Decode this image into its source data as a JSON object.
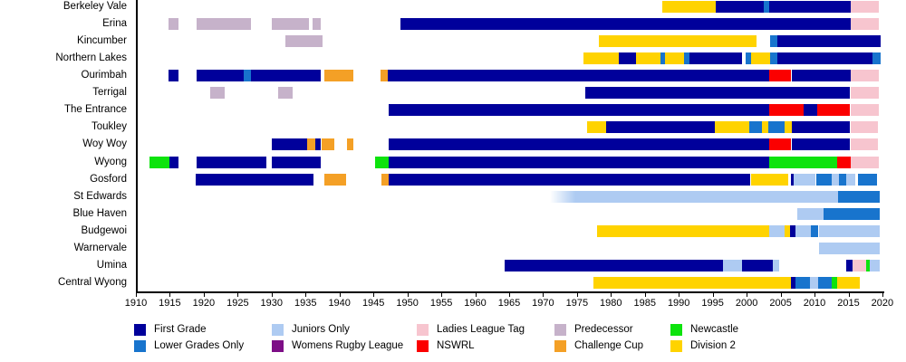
{
  "chart_data": {
    "type": "timeline-gantt",
    "description": "Timeline of Central Coast rugby league clubs and competition status by year",
    "x_axis": {
      "min": 1910,
      "max": 2020,
      "tick_step": 5,
      "ticks": [
        1910,
        1915,
        1920,
        1925,
        1930,
        1935,
        1940,
        1945,
        1950,
        1955,
        1960,
        1965,
        1970,
        1975,
        1980,
        1985,
        1990,
        1995,
        2000,
        2005,
        2010,
        2015,
        2020
      ]
    },
    "legend": [
      {
        "key": "first",
        "label": "First Grade",
        "color": "#00009B"
      },
      {
        "key": "lower",
        "label": "Lower Grades Only",
        "color": "#1874CD"
      },
      {
        "key": "juniors",
        "label": "Juniors Only",
        "color": "#AECBF2"
      },
      {
        "key": "womens",
        "label": "Womens Rugby League",
        "color": "#7D0E86"
      },
      {
        "key": "ladies",
        "label": "Ladies League Tag",
        "color": "#F7C5CF"
      },
      {
        "key": "nswrl",
        "label": "NSWRL",
        "color": "#FB0000"
      },
      {
        "key": "predecessor",
        "label": "Predecessor",
        "color": "#C6B2CA"
      },
      {
        "key": "challenge",
        "label": "Challenge Cup",
        "color": "#F4A026"
      },
      {
        "key": "newcastle",
        "label": "Newcastle",
        "color": "#0DE30D"
      },
      {
        "key": "division2",
        "label": "Division 2",
        "color": "#FFD300"
      }
    ],
    "legend_columns": [
      [
        "first",
        "lower"
      ],
      [
        "juniors",
        "womens"
      ],
      [
        "ladies",
        "nswrl"
      ],
      [
        "predecessor",
        "challenge"
      ],
      [
        "newcastle",
        "division2"
      ]
    ],
    "rows": [
      {
        "name": "Berkeley Vale",
        "segments": [
          {
            "key": "division2",
            "start": 1987.5,
            "end": 1995.5
          },
          {
            "key": "first",
            "start": 1995.5,
            "end": 2002.5
          },
          {
            "key": "lower",
            "start": 2002.5,
            "end": 2003.3
          },
          {
            "key": "first",
            "start": 2003.3,
            "end": 2015.3
          },
          {
            "key": "ladies",
            "start": 2015.3,
            "end": 2019.5
          }
        ]
      },
      {
        "name": "Erina",
        "segments": [
          {
            "key": "predecessor",
            "start": 1914.8,
            "end": 1916.2
          },
          {
            "key": "predecessor",
            "start": 1919,
            "end": 1927
          },
          {
            "key": "predecessor",
            "start": 1930,
            "end": 1935.5
          },
          {
            "key": "predecessor",
            "start": 1936,
            "end": 1937.2
          },
          {
            "key": "first",
            "start": 1949,
            "end": 2015.3
          },
          {
            "key": "ladies",
            "start": 2015.3,
            "end": 2019.5
          }
        ]
      },
      {
        "name": "Kincumber",
        "segments": [
          {
            "key": "predecessor",
            "start": 1932,
            "end": 1937.5
          },
          {
            "key": "division2",
            "start": 1978.2,
            "end": 2001.4
          },
          {
            "key": "lower",
            "start": 2003.4,
            "end": 2004.5
          },
          {
            "key": "first",
            "start": 2004.5,
            "end": 2019.7
          }
        ]
      },
      {
        "name": "Northern Lakes",
        "segments": [
          {
            "key": "division2",
            "start": 1976,
            "end": 1981.2
          },
          {
            "key": "first",
            "start": 1981.2,
            "end": 1983.7
          },
          {
            "key": "division2",
            "start": 1983.7,
            "end": 1987.3
          },
          {
            "key": "lower",
            "start": 1987.3,
            "end": 1988
          },
          {
            "key": "division2",
            "start": 1988,
            "end": 1990.8
          },
          {
            "key": "lower",
            "start": 1990.8,
            "end": 1991.6
          },
          {
            "key": "first",
            "start": 1991.6,
            "end": 1999.3
          },
          {
            "key": "lower",
            "start": 1999.8,
            "end": 2000.6
          },
          {
            "key": "division2",
            "start": 2000.6,
            "end": 2003.4
          },
          {
            "key": "lower",
            "start": 2003.4,
            "end": 2004.5
          },
          {
            "key": "first",
            "start": 2004.5,
            "end": 2018.6
          },
          {
            "key": "lower",
            "start": 2018.6,
            "end": 2019.7
          }
        ]
      },
      {
        "name": "Ourimbah",
        "segments": [
          {
            "key": "first",
            "start": 1914.8,
            "end": 1916.3
          },
          {
            "key": "first",
            "start": 1919,
            "end": 1925.9
          },
          {
            "key": "lower",
            "start": 1925.9,
            "end": 1926.9
          },
          {
            "key": "first",
            "start": 1926.9,
            "end": 1937.2
          },
          {
            "key": "challenge",
            "start": 1937.8,
            "end": 1942
          },
          {
            "key": "challenge",
            "start": 1946,
            "end": 1947.1
          },
          {
            "key": "first",
            "start": 1947.1,
            "end": 2003.3
          },
          {
            "key": "nswrl",
            "start": 2003.3,
            "end": 2006.6
          },
          {
            "key": "first",
            "start": 2006.6,
            "end": 2015.3
          },
          {
            "key": "ladies",
            "start": 2015.3,
            "end": 2019.5
          }
        ]
      },
      {
        "name": "Terrigal",
        "segments": [
          {
            "key": "predecessor",
            "start": 1921,
            "end": 1923.1
          },
          {
            "key": "predecessor",
            "start": 1931,
            "end": 1933.1
          },
          {
            "key": "first",
            "start": 1976.2,
            "end": 2015.2
          },
          {
            "key": "ladies",
            "start": 2015.3,
            "end": 2019.5
          }
        ]
      },
      {
        "name": "The Entrance",
        "segments": [
          {
            "key": "first",
            "start": 1947.2,
            "end": 2003.3
          },
          {
            "key": "nswrl",
            "start": 2003.3,
            "end": 2008.4
          },
          {
            "key": "first",
            "start": 2008.4,
            "end": 2010.4
          },
          {
            "key": "nswrl",
            "start": 2010.4,
            "end": 2015.2
          },
          {
            "key": "ladies",
            "start": 2015.3,
            "end": 2019.5
          }
        ]
      },
      {
        "name": "Toukley",
        "segments": [
          {
            "key": "division2",
            "start": 1976.5,
            "end": 1979.3
          },
          {
            "key": "first",
            "start": 1979.3,
            "end": 1995.3
          },
          {
            "key": "division2",
            "start": 1995.3,
            "end": 2000.4
          },
          {
            "key": "lower",
            "start": 2000.4,
            "end": 2002.2
          },
          {
            "key": "division2",
            "start": 2002.2,
            "end": 2003.2
          },
          {
            "key": "lower",
            "start": 2003.2,
            "end": 2005.6
          },
          {
            "key": "division2",
            "start": 2005.6,
            "end": 2006.6
          },
          {
            "key": "first",
            "start": 2006.6,
            "end": 2015.2
          },
          {
            "key": "ladies",
            "start": 2015.3,
            "end": 2019.3
          }
        ]
      },
      {
        "name": "Woy Woy",
        "segments": [
          {
            "key": "first",
            "start": 1930,
            "end": 1935.2
          },
          {
            "key": "challenge",
            "start": 1935.2,
            "end": 1936.4
          },
          {
            "key": "first",
            "start": 1936.4,
            "end": 1937.3
          },
          {
            "key": "challenge",
            "start": 1937.3,
            "end": 1939.2
          },
          {
            "key": "challenge",
            "start": 1941.1,
            "end": 1942.1
          },
          {
            "key": "first",
            "start": 1947.2,
            "end": 2003.3
          },
          {
            "key": "nswrl",
            "start": 2003.3,
            "end": 2006.6
          },
          {
            "key": "first",
            "start": 2006.6,
            "end": 2015.2
          },
          {
            "key": "ladies",
            "start": 2015.3,
            "end": 2019.3
          }
        ]
      },
      {
        "name": "Wyong",
        "segments": [
          {
            "key": "newcastle",
            "start": 1912,
            "end": 1914.9
          },
          {
            "key": "first",
            "start": 1914.9,
            "end": 1916.3
          },
          {
            "key": "first",
            "start": 1919,
            "end": 1929.2
          },
          {
            "key": "first",
            "start": 1930,
            "end": 1937.3
          },
          {
            "key": "newcastle",
            "start": 1945.2,
            "end": 1947.3
          },
          {
            "key": "first",
            "start": 1947.3,
            "end": 2003.3
          },
          {
            "key": "newcastle",
            "start": 2003.3,
            "end": 2013.3
          },
          {
            "key": "nswrl",
            "start": 2013.3,
            "end": 2015.3
          },
          {
            "key": "ladies",
            "start": 2015.3,
            "end": 2019.5
          }
        ]
      },
      {
        "name": "Gosford",
        "segments": [
          {
            "key": "first",
            "start": 1918.8,
            "end": 1936.2
          },
          {
            "key": "challenge",
            "start": 1937.8,
            "end": 1941
          },
          {
            "key": "challenge",
            "start": 1946.2,
            "end": 1947.2
          },
          {
            "key": "first",
            "start": 1947.2,
            "end": 2000.5
          },
          {
            "key": "division2",
            "start": 2000.6,
            "end": 2006.2
          },
          {
            "key": "first",
            "start": 2006.5,
            "end": 2006.9
          },
          {
            "key": "juniors",
            "start": 2006.9,
            "end": 2010.2
          },
          {
            "key": "lower",
            "start": 2010.2,
            "end": 2012.5
          },
          {
            "key": "juniors",
            "start": 2012.5,
            "end": 2013.6
          },
          {
            "key": "lower",
            "start": 2013.6,
            "end": 2014.7
          },
          {
            "key": "juniors",
            "start": 2014.7,
            "end": 2016
          },
          {
            "key": "lower",
            "start": 2016.4,
            "end": 2019.2
          }
        ]
      },
      {
        "name": "St Edwards",
        "segments": [
          {
            "key": "juniors",
            "start": 1971,
            "end": 2013.5,
            "fade_in": true
          },
          {
            "key": "lower",
            "start": 2013.5,
            "end": 2019.6
          }
        ]
      },
      {
        "name": "Blue Haven",
        "segments": [
          {
            "key": "juniors",
            "start": 2007.5,
            "end": 2011.3
          },
          {
            "key": "lower",
            "start": 2011.3,
            "end": 2019.6
          }
        ]
      },
      {
        "name": "Budgewoi",
        "segments": [
          {
            "key": "division2",
            "start": 1978,
            "end": 2003.3
          },
          {
            "key": "juniors",
            "start": 2003.3,
            "end": 2005.6
          },
          {
            "key": "division2",
            "start": 2005.6,
            "end": 2006.4
          },
          {
            "key": "first",
            "start": 2006.4,
            "end": 2007.2
          },
          {
            "key": "juniors",
            "start": 2007.2,
            "end": 2009.5
          },
          {
            "key": "lower",
            "start": 2009.5,
            "end": 2010.6
          },
          {
            "key": "juniors",
            "start": 2010.6,
            "end": 2019.6
          }
        ]
      },
      {
        "name": "Warnervale",
        "segments": [
          {
            "key": "juniors",
            "start": 2010.6,
            "end": 2019.6
          }
        ]
      },
      {
        "name": "Umina",
        "segments": [
          {
            "key": "first",
            "start": 1964.3,
            "end": 1996.5
          },
          {
            "key": "juniors",
            "start": 1996.5,
            "end": 1999.3
          },
          {
            "key": "first",
            "start": 1999.3,
            "end": 2003.8
          },
          {
            "key": "juniors",
            "start": 2003.8,
            "end": 2004.8
          },
          {
            "key": "first",
            "start": 2014.7,
            "end": 2015.6
          },
          {
            "key": "ladies",
            "start": 2015.6,
            "end": 2017.6
          },
          {
            "key": "newcastle",
            "start": 2017.6,
            "end": 2018.1
          },
          {
            "key": "juniors",
            "start": 2018.1,
            "end": 2019.6
          }
        ]
      },
      {
        "name": "Central Wyong",
        "segments": [
          {
            "key": "division2",
            "start": 1977.4,
            "end": 2006.5
          },
          {
            "key": "first",
            "start": 2006.5,
            "end": 2007.2
          },
          {
            "key": "lower",
            "start": 2007.2,
            "end": 2009.3
          },
          {
            "key": "juniors",
            "start": 2009.3,
            "end": 2010.5
          },
          {
            "key": "lower",
            "start": 2010.5,
            "end": 2012.5
          },
          {
            "key": "newcastle",
            "start": 2012.5,
            "end": 2013.3
          },
          {
            "key": "division2",
            "start": 2013.3,
            "end": 2016.7
          }
        ]
      }
    ]
  }
}
